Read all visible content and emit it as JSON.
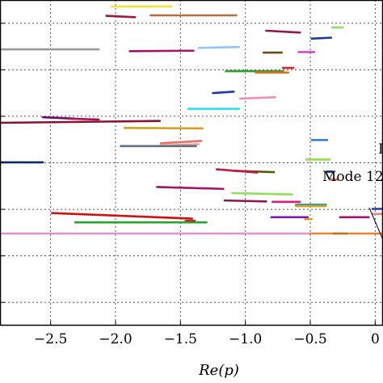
{
  "chart_data": {
    "type": "line",
    "xlabel": "Re(p)",
    "xlim": [
      -2.89,
      0.06
    ],
    "ylim": [
      0,
      7
    ],
    "grid": true,
    "xticks": [
      -2.5,
      -2.0,
      -1.5,
      -1.0,
      -0.5,
      0
    ],
    "xtick_labels": [
      "−2.5",
      "−2.0",
      "−1.5",
      "−1.0",
      "−0.5",
      "0"
    ],
    "yticks": [
      0.5,
      1.5,
      2.5,
      3.5,
      4.5,
      5.5,
      6.5
    ],
    "annotations": [
      "Mode 12",
      "I"
    ],
    "segments": [
      {
        "x": [
          -2.03,
          -1.57
        ],
        "y": [
          6.86,
          6.86
        ],
        "color": "#f0e040"
      },
      {
        "x": [
          -2.07,
          -1.85
        ],
        "y": [
          6.66,
          6.63
        ],
        "color": "#a0153e"
      },
      {
        "x": [
          -1.73,
          -1.07
        ],
        "y": [
          6.67,
          6.67
        ],
        "color": "#b07040"
      },
      {
        "x": [
          -0.33,
          -0.25
        ],
        "y": [
          6.41,
          6.41
        ],
        "color": "#90e060"
      },
      {
        "x": [
          -0.84,
          -0.58
        ],
        "y": [
          6.34,
          6.3
        ],
        "color": "#8b1a4a"
      },
      {
        "x": [
          -0.49,
          -0.34
        ],
        "y": [
          6.17,
          6.19
        ],
        "color": "#1a3a9a"
      },
      {
        "x": [
          -2.89,
          -2.13
        ],
        "y": [
          5.94,
          5.94
        ],
        "color": "#999999"
      },
      {
        "x": [
          -1.36,
          -1.05
        ],
        "y": [
          5.97,
          5.99
        ],
        "color": "#8ec8f0"
      },
      {
        "x": [
          -1.89,
          -1.4
        ],
        "y": [
          5.9,
          5.91
        ],
        "color": "#a0156a"
      },
      {
        "x": [
          -0.86,
          -0.72
        ],
        "y": [
          5.87,
          5.87
        ],
        "color": "#6b4a1a"
      },
      {
        "x": [
          -0.59,
          -0.47
        ],
        "y": [
          5.88,
          5.88
        ],
        "color": "#d04ad0"
      },
      {
        "x": [
          -0.71,
          -0.63
        ],
        "y": [
          5.54,
          5.54
        ],
        "color": "#e02020"
      },
      {
        "x": [
          -1.15,
          -0.71
        ],
        "y": [
          5.47,
          5.47
        ],
        "color": "#2ca02c"
      },
      {
        "x": [
          -0.92,
          -0.67
        ],
        "y": [
          5.44,
          5.44
        ],
        "color": "#e8701a"
      },
      {
        "x": [
          -1.25,
          -1.09
        ],
        "y": [
          5.0,
          5.03
        ],
        "color": "#1a3ab0"
      },
      {
        "x": [
          -1.04,
          -0.77
        ],
        "y": [
          4.88,
          4.91
        ],
        "color": "#f48cb0"
      },
      {
        "x": [
          -1.44,
          -1.05
        ],
        "y": [
          4.66,
          4.66
        ],
        "color": "#30e0f0"
      },
      {
        "x": [
          -2.89,
          -1.66
        ],
        "y": [
          4.36,
          4.4
        ],
        "color": "#8b1030"
      },
      {
        "x": [
          -2.56,
          -2.32
        ],
        "y": [
          4.48,
          4.45
        ],
        "color": "#6a0a6a"
      },
      {
        "x": [
          -2.36,
          -2.13
        ],
        "y": [
          4.45,
          4.43
        ],
        "color": "#a0155a"
      },
      {
        "x": [
          -1.93,
          -1.33
        ],
        "y": [
          4.25,
          4.24
        ],
        "color": "#d4a020"
      },
      {
        "x": [
          -0.49,
          -0.37
        ],
        "y": [
          3.99,
          3.99
        ],
        "color": "#3a80d0"
      },
      {
        "x": [
          -1.65,
          -1.34
        ],
        "y": [
          3.92,
          3.97
        ],
        "color": "#e87060"
      },
      {
        "x": [
          -1.66,
          -1.36
        ],
        "y": [
          3.87,
          3.9
        ],
        "color": "#f0a0a0"
      },
      {
        "x": [
          -1.96,
          -1.38
        ],
        "y": [
          3.86,
          3.86
        ],
        "color": "#607080"
      },
      {
        "x": [
          -2.89,
          -2.56
        ],
        "y": [
          3.51,
          3.51
        ],
        "color": "#0a2a6a"
      },
      {
        "x": [
          -0.53,
          -0.35
        ],
        "y": [
          3.57,
          3.57
        ],
        "color": "#90e040"
      },
      {
        "x": [
          -1.1,
          -0.78
        ],
        "y": [
          3.33,
          3.3
        ],
        "color": "#5a5a0a"
      },
      {
        "x": [
          -1.22,
          -0.91
        ],
        "y": [
          3.36,
          3.29
        ],
        "color": "#c01a4a"
      },
      {
        "x": [
          -0.37,
          -0.33
        ],
        "y": [
          3.31,
          3.31
        ],
        "color": "#0a2a8a"
      },
      {
        "x": [
          -0.35,
          -0.29
        ],
        "y": [
          3.14,
          3.14
        ],
        "color": "#e06050"
      },
      {
        "x": [
          -1.68,
          -1.17
        ],
        "y": [
          2.98,
          2.94
        ],
        "color": "#a0156a"
      },
      {
        "x": [
          -1.1,
          -0.64
        ],
        "y": [
          2.85,
          2.82
        ],
        "color": "#90e060"
      },
      {
        "x": [
          -1.16,
          -0.84
        ],
        "y": [
          2.69,
          2.67
        ],
        "color": "#8b1a4a"
      },
      {
        "x": [
          -0.79,
          -0.58
        ],
        "y": [
          2.66,
          2.66
        ],
        "color": "#e01a7a"
      },
      {
        "x": [
          -0.61,
          -0.38
        ],
        "y": [
          2.6,
          2.6
        ],
        "color": "#2ca0a0"
      },
      {
        "x": [
          -0.61,
          -0.38
        ],
        "y": [
          2.57,
          2.57
        ],
        "color": "#d4a020"
      },
      {
        "x": [
          -0.02,
          0.06
        ],
        "y": [
          2.51,
          2.51
        ],
        "color": "#1a3ab0"
      },
      {
        "x": [
          -2.49,
          -1.41
        ],
        "y": [
          2.42,
          2.3
        ],
        "color": "#d01010"
      },
      {
        "x": [
          -1.46,
          -1.39
        ],
        "y": [
          2.25,
          2.25
        ],
        "color": "#d01010"
      },
      {
        "x": [
          -0.8,
          -0.52
        ],
        "y": [
          2.33,
          2.33
        ],
        "color": "#7a1ab0"
      },
      {
        "x": [
          -0.54,
          -0.49
        ],
        "y": [
          2.29,
          2.29
        ],
        "color": "#d4a020"
      },
      {
        "x": [
          -0.27,
          -0.05
        ],
        "y": [
          2.33,
          2.33
        ],
        "color": "#a0156a"
      },
      {
        "x": [
          -0.02,
          0.06
        ],
        "y": [
          2.4,
          2.4
        ],
        "color": "#f08080"
      },
      {
        "x": [
          -2.31,
          -1.3
        ],
        "y": [
          2.22,
          2.22
        ],
        "color": "#2ca02c"
      },
      {
        "x": [
          -2.89,
          -0.5
        ],
        "y": [
          1.98,
          1.98
        ],
        "color": "#e090d0"
      },
      {
        "x": [
          -0.5,
          0.06
        ],
        "y": [
          1.98,
          1.98
        ],
        "color": "#f08030"
      },
      {
        "x": [
          -0.32,
          -0.22
        ],
        "y": [
          1.98,
          1.98
        ],
        "color": "#c07020"
      }
    ]
  },
  "annotation_texts": {
    "mode": "Mode 12",
    "edge": "I"
  }
}
